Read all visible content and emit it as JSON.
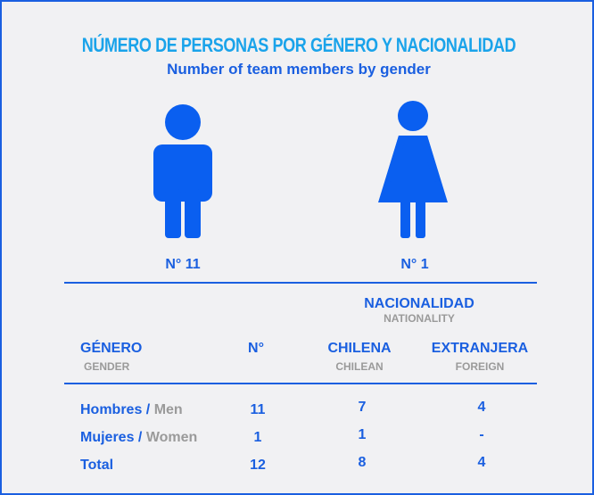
{
  "header": {
    "title": "NÚMERO DE PERSONAS POR GÉNERO Y NACIONALIDAD",
    "subtitle": "Number of team members by gender"
  },
  "figures": [
    {
      "label": "N° 11"
    },
    {
      "label": "N° 1"
    }
  ],
  "table": {
    "group_header": {
      "es": "NACIONALIDAD",
      "en": "NATIONALITY"
    },
    "columns": [
      {
        "es": "GÉNERO",
        "en": "GENDER"
      },
      {
        "es": "N°"
      },
      {
        "es": "CHILENA",
        "en": "CHILEAN"
      },
      {
        "es": "EXTRANJERA",
        "en": "FOREIGN"
      }
    ],
    "rows": [
      [
        {
          "es": "Hombres /",
          "en": "Men"
        },
        "11",
        "7",
        "4"
      ],
      [
        {
          "es": "Mujeres /",
          "en": "Women"
        },
        "1",
        "1",
        "-"
      ],
      [
        {
          "es": "Total"
        },
        "12",
        "8",
        "4"
      ]
    ]
  }
}
